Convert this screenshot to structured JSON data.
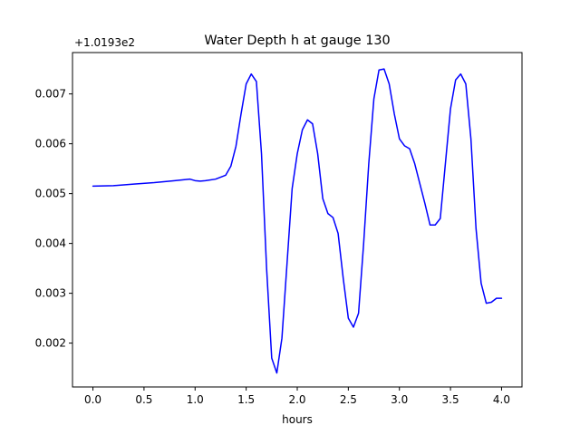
{
  "chart_data": {
    "type": "line",
    "title": "Water Depth h at gauge 130",
    "xlabel": "hours",
    "ylabel": "",
    "offset_label": "+1.0193e2",
    "xlim": [
      -0.2,
      4.2
    ],
    "ylim": [
      0.00112,
      0.00783
    ],
    "xticks": [
      0.0,
      0.5,
      1.0,
      1.5,
      2.0,
      2.5,
      3.0,
      3.5,
      4.0
    ],
    "xtick_labels": [
      "0.0",
      "0.5",
      "1.0",
      "1.5",
      "2.0",
      "2.5",
      "3.0",
      "3.5",
      "4.0"
    ],
    "yticks": [
      0.002,
      0.003,
      0.004,
      0.005,
      0.006,
      0.007
    ],
    "ytick_labels": [
      "0.002",
      "0.003",
      "0.004",
      "0.005",
      "0.006",
      "0.007"
    ],
    "grid": false,
    "series": [
      {
        "color": "#0000ff",
        "x": [
          0.0,
          0.2,
          0.4,
          0.6,
          0.8,
          0.95,
          1.0,
          1.05,
          1.1,
          1.2,
          1.3,
          1.35,
          1.4,
          1.45,
          1.5,
          1.55,
          1.6,
          1.65,
          1.7,
          1.75,
          1.8,
          1.85,
          1.9,
          1.95,
          2.0,
          2.05,
          2.1,
          2.15,
          2.2,
          2.25,
          2.3,
          2.35,
          2.4,
          2.45,
          2.5,
          2.55,
          2.6,
          2.65,
          2.7,
          2.75,
          2.8,
          2.85,
          2.9,
          2.95,
          3.0,
          3.05,
          3.1,
          3.15,
          3.2,
          3.25,
          3.3,
          3.35,
          3.4,
          3.45,
          3.5,
          3.55,
          3.6,
          3.65,
          3.7,
          3.75,
          3.8,
          3.85,
          3.9,
          3.95,
          4.0
        ],
        "y": [
          0.00515,
          0.00516,
          0.00519,
          0.00522,
          0.00526,
          0.00529,
          0.00526,
          0.00525,
          0.00526,
          0.00529,
          0.00537,
          0.00555,
          0.00595,
          0.0066,
          0.0072,
          0.0074,
          0.00725,
          0.0058,
          0.0035,
          0.0017,
          0.0014,
          0.0021,
          0.0036,
          0.0051,
          0.0058,
          0.00628,
          0.00648,
          0.0064,
          0.0058,
          0.0049,
          0.0046,
          0.00452,
          0.0042,
          0.0033,
          0.0025,
          0.00232,
          0.0026,
          0.004,
          0.0056,
          0.0069,
          0.00748,
          0.0075,
          0.0072,
          0.0066,
          0.0061,
          0.00596,
          0.0059,
          0.0056,
          0.0052,
          0.0048,
          0.00437,
          0.00437,
          0.0045,
          0.0056,
          0.0067,
          0.00728,
          0.0074,
          0.0072,
          0.0061,
          0.0043,
          0.0032,
          0.0028,
          0.00282,
          0.0029,
          0.0029
        ]
      }
    ]
  }
}
